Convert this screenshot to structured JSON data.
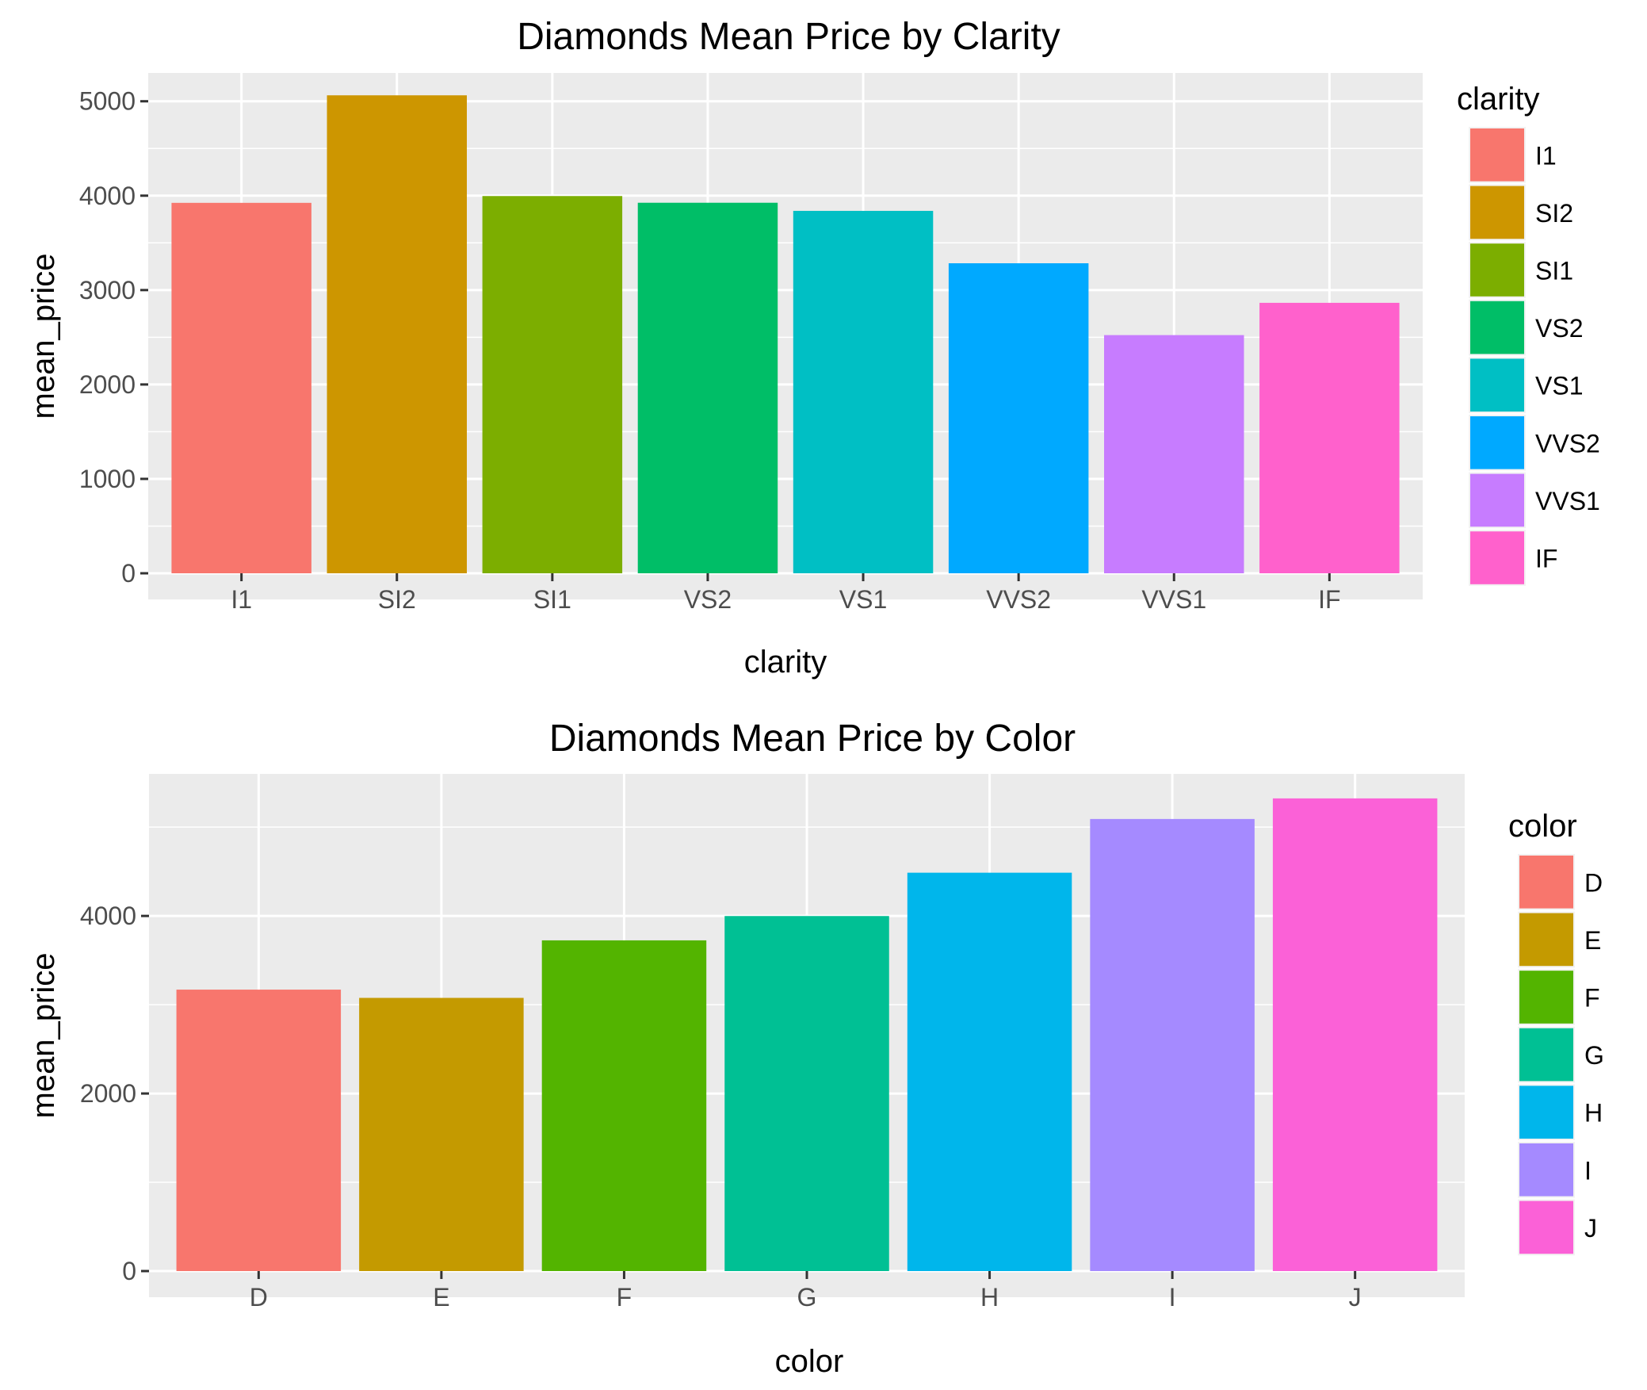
{
  "chart_data": [
    {
      "type": "bar",
      "title": "Diamonds Mean Price by Clarity",
      "xlabel": "clarity",
      "ylabel": "mean_price",
      "categories": [
        "I1",
        "SI2",
        "SI1",
        "VS2",
        "VS1",
        "VVS2",
        "VVS1",
        "IF"
      ],
      "values": [
        3924,
        5063,
        3996,
        3925,
        3839,
        3284,
        2523,
        2865
      ],
      "colors": [
        "#F8766D",
        "#CD9600",
        "#7CAE00",
        "#00BE67",
        "#00BFC4",
        "#00A9FF",
        "#C77CFF",
        "#FF61CC"
      ],
      "ylim": [
        0,
        5300
      ],
      "yticks": [
        0,
        1000,
        2000,
        3000,
        4000,
        5000
      ],
      "ytick_labels": [
        "0",
        "1000",
        "2000",
        "3000",
        "4000",
        "5000"
      ],
      "grid": true,
      "legend": {
        "title": "clarity",
        "placement": "right",
        "items": [
          "I1",
          "SI2",
          "SI1",
          "VS2",
          "VS1",
          "VVS2",
          "VVS1",
          "IF"
        ]
      }
    },
    {
      "type": "bar",
      "title": "Diamonds Mean Price by Color",
      "xlabel": "color",
      "ylabel": "mean_price",
      "categories": [
        "D",
        "E",
        "F",
        "G",
        "H",
        "I",
        "J"
      ],
      "values": [
        3170,
        3077,
        3725,
        3999,
        4487,
        5092,
        5324
      ],
      "colors": [
        "#F8766D",
        "#C49A00",
        "#53B400",
        "#00C094",
        "#00B6EB",
        "#A58AFF",
        "#FB61D7"
      ],
      "ylim": [
        0,
        5600
      ],
      "yticks": [
        0,
        2000,
        4000
      ],
      "ytick_labels": [
        "0",
        "2000",
        "4000"
      ],
      "grid": true,
      "legend": {
        "title": "color",
        "placement": "right",
        "items": [
          "D",
          "E",
          "F",
          "G",
          "H",
          "I",
          "J"
        ]
      }
    }
  ]
}
